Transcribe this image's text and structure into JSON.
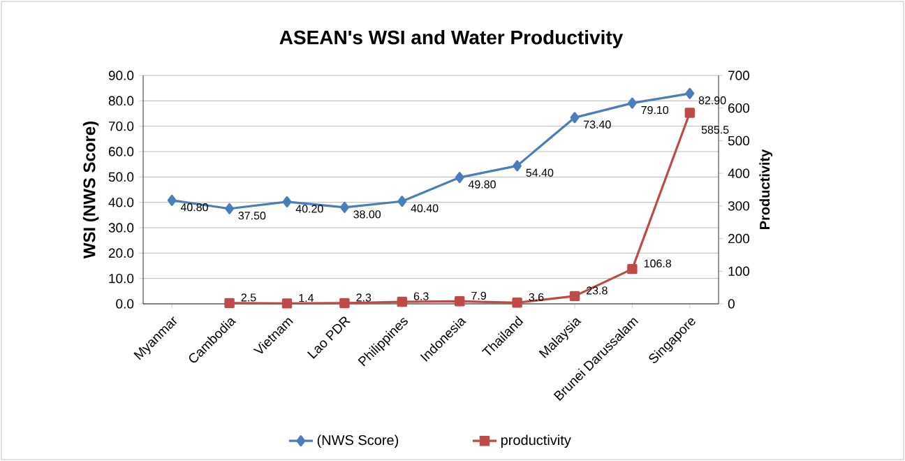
{
  "chart_data": {
    "type": "line",
    "title": "ASEAN's WSI and Water Productivity",
    "ylabel": "WSI (NWS Score)",
    "y2label": "Productivity",
    "categories": [
      "Myanmar",
      "Cambodia",
      "Vietnam",
      "Lao PDR",
      "Philippines",
      "Indonesia",
      "Thailand",
      "Malaysia",
      "Brunei Darussalam",
      "Singapore"
    ],
    "series": [
      {
        "name": "(NWS Score)",
        "color": "#4a7ebb",
        "marker": "diamond",
        "values": [
          40.8,
          37.5,
          40.2,
          38.0,
          40.4,
          49.8,
          54.4,
          73.4,
          79.1,
          82.9
        ],
        "value_labels": [
          "40.80",
          "37.50",
          "40.20",
          "38.00",
          "40.40",
          "49.80",
          "54.40",
          "73.40",
          "79.10",
          "82.90"
        ]
      },
      {
        "name": "productivity",
        "color": "#be4b48",
        "marker": "square",
        "axis": "y2",
        "values": [
          null,
          2.5,
          1.4,
          2.3,
          6.3,
          7.9,
          3.6,
          23.8,
          106.8,
          585.5
        ],
        "value_labels": [
          null,
          "2.5",
          "1.4",
          "2.3",
          "6.3",
          "7.9",
          "3.6",
          "23.8",
          "106.8",
          "585.5"
        ]
      }
    ],
    "ylim": [
      0,
      90
    ],
    "yticks": [
      {
        "value": 0,
        "label": "0.0"
      },
      {
        "value": 10,
        "label": "10.0"
      },
      {
        "value": 20,
        "label": "20.0"
      },
      {
        "value": 30,
        "label": "30.0"
      },
      {
        "value": 40,
        "label": "40.0"
      },
      {
        "value": 50,
        "label": "50.0"
      },
      {
        "value": 60,
        "label": "60.0"
      },
      {
        "value": 70,
        "label": "70.0"
      },
      {
        "value": 80,
        "label": "80.0"
      },
      {
        "value": 90,
        "label": "90.0"
      }
    ],
    "y2lim": [
      0,
      700
    ],
    "y2ticks": [
      0,
      100,
      200,
      300,
      400,
      500,
      600,
      700
    ],
    "grid": "y",
    "legend": "bottom"
  }
}
